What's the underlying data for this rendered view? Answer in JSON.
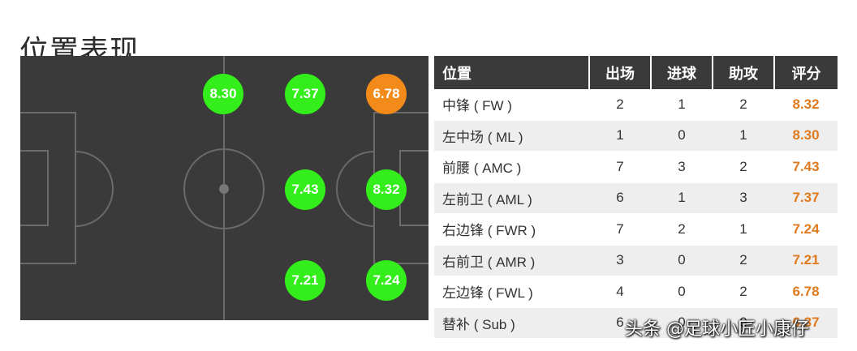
{
  "page": {
    "title": "位置表现"
  },
  "colors": {
    "good": "#33ee1a",
    "warn": "#f38b1b",
    "rating_text": "#e07a1f",
    "pitch": "#3a3a3a",
    "pitch_lines": "#6a6a6a"
  },
  "pitch_ratings": [
    {
      "id": "ml",
      "value": "8.30",
      "color": "#33ee1a"
    },
    {
      "id": "aml",
      "value": "7.37",
      "color": "#33ee1a"
    },
    {
      "id": "fwl",
      "value": "6.78",
      "color": "#f38b1b"
    },
    {
      "id": "amc",
      "value": "7.43",
      "color": "#33ee1a"
    },
    {
      "id": "fw",
      "value": "8.32",
      "color": "#33ee1a"
    },
    {
      "id": "amr",
      "value": "7.21",
      "color": "#33ee1a"
    },
    {
      "id": "fwr",
      "value": "7.24",
      "color": "#33ee1a"
    }
  ],
  "table": {
    "headers": [
      "位置",
      "出场",
      "进球",
      "助攻",
      "评分"
    ],
    "rows": [
      {
        "position": "中锋 ( FW )",
        "apps": "2",
        "goals": "1",
        "assists": "2",
        "rating": "8.32"
      },
      {
        "position": "左中场 ( ML )",
        "apps": "1",
        "goals": "0",
        "assists": "1",
        "rating": "8.30"
      },
      {
        "position": "前腰 ( AMC )",
        "apps": "7",
        "goals": "3",
        "assists": "2",
        "rating": "7.43"
      },
      {
        "position": "左前卫 ( AML )",
        "apps": "6",
        "goals": "1",
        "assists": "3",
        "rating": "7.37"
      },
      {
        "position": "右边锋 ( FWR )",
        "apps": "7",
        "goals": "2",
        "assists": "1",
        "rating": "7.24"
      },
      {
        "position": "右前卫 ( AMR )",
        "apps": "3",
        "goals": "0",
        "assists": "2",
        "rating": "7.21"
      },
      {
        "position": "左边锋 ( FWL )",
        "apps": "4",
        "goals": "0",
        "assists": "2",
        "rating": "6.78"
      },
      {
        "position": "替补 ( Sub )",
        "apps": "6",
        "goals": "0",
        "assists": "0",
        "rating": "6.37"
      }
    ]
  },
  "watermark": "头条 @足球小匠小康仔"
}
